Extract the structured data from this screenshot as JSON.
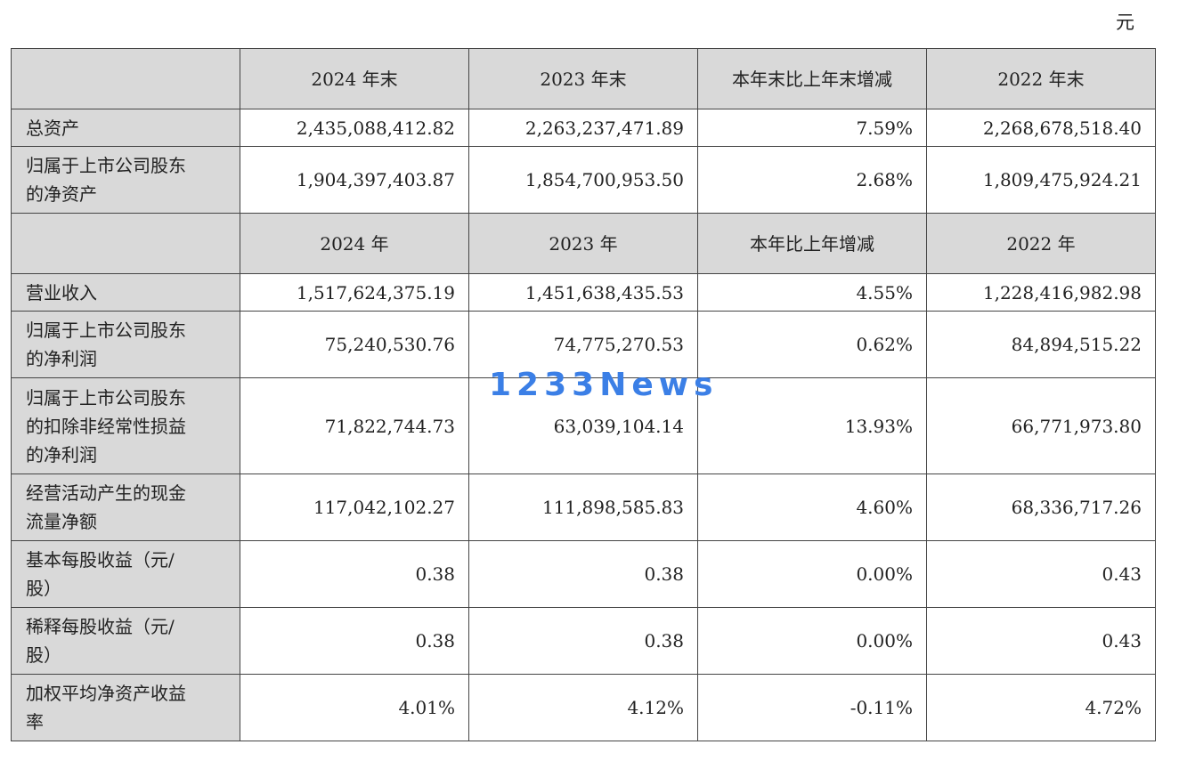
{
  "unit_label": "元",
  "header1": [
    "",
    "2024 年末",
    "2023 年末",
    "本年末比上年末增减",
    "2022 年末"
  ],
  "rows1": [
    {
      "label": "总资产",
      "values": [
        "2,435,088,412.82",
        "2,263,237,471.89",
        "7.59%",
        "2,268,678,518.40"
      ]
    },
    {
      "label_lines": [
        "归属于上市公司股东",
        "的净资产"
      ],
      "values": [
        "1,904,397,403.87",
        "1,854,700,953.50",
        "2.68%",
        "1,809,475,924.21"
      ]
    }
  ],
  "header2": [
    "",
    "2024 年",
    "2023 年",
    "本年比上年增减",
    "2022 年"
  ],
  "rows2": [
    {
      "label_lines": [
        "营业收入"
      ],
      "values": [
        "1,517,624,375.19",
        "1,451,638,435.53",
        "4.55%",
        "1,228,416,982.98"
      ]
    },
    {
      "label_lines": [
        "归属于上市公司股东",
        "的净利润"
      ],
      "values": [
        "75,240,530.76",
        "74,775,270.53",
        "0.62%",
        "84,894,515.22"
      ]
    },
    {
      "label_lines": [
        "归属于上市公司股东",
        "的扣除非经常性损益",
        "的净利润"
      ],
      "values": [
        "71,822,744.73",
        "63,039,104.14",
        "13.93%",
        "66,771,973.80"
      ]
    },
    {
      "label_lines": [
        "经营活动产生的现金",
        "流量净额"
      ],
      "values": [
        "117,042,102.27",
        "111,898,585.83",
        "4.60%",
        "68,336,717.26"
      ]
    },
    {
      "label_lines": [
        "基本每股收益（元/",
        "股）"
      ],
      "values": [
        "0.38",
        "0.38",
        "0.00%",
        "0.43"
      ]
    },
    {
      "label_lines": [
        "稀释每股收益（元/",
        "股）"
      ],
      "values": [
        "0.38",
        "0.38",
        "0.00%",
        "0.43"
      ]
    },
    {
      "label_lines": [
        "加权平均净资产收益",
        "率"
      ],
      "values": [
        "4.01%",
        "4.12%",
        "-0.11%",
        "4.72%"
      ]
    }
  ],
  "watermark": "1233News"
}
